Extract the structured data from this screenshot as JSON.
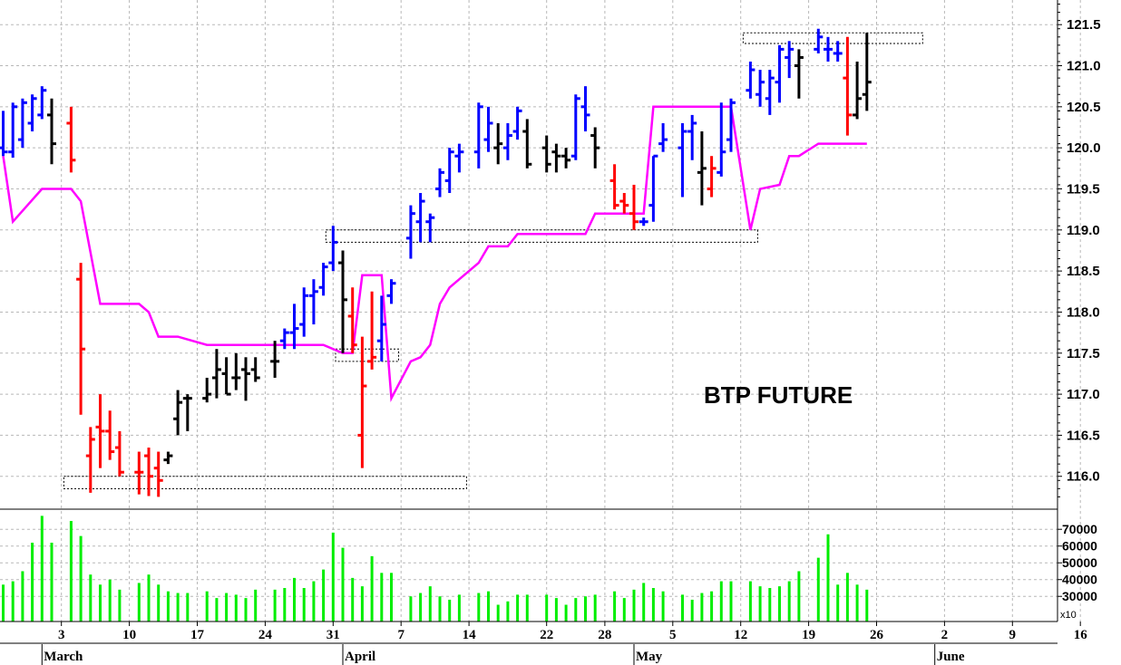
{
  "chart_data": {
    "type": "ohlc",
    "title": "BTP FUTURE",
    "colors": {
      "up": "#0000ff",
      "down": "#ff0000",
      "neutral": "#000000",
      "stop_line": "#ff00ff",
      "volume": "#00ee00",
      "grid": "#b8b8b8"
    },
    "price_axis": {
      "ylim": [
        115.6,
        121.8
      ],
      "ticks": [
        "116.0",
        "116.5",
        "117.0",
        "117.5",
        "118.0",
        "118.5",
        "119.0",
        "119.5",
        "120.0",
        "120.5",
        "121.0",
        "121.5"
      ],
      "position": "right"
    },
    "volume_axis": {
      "ylim": [
        15000,
        82000
      ],
      "ticks": [
        "30000",
        "40000",
        "50000",
        "60000",
        "70000"
      ],
      "multiplier_label": "x10",
      "position": "right"
    },
    "x_axis": {
      "day_ticks": [
        "3",
        "10",
        "17",
        "24",
        "31",
        "7",
        "14",
        "22",
        "28",
        "5",
        "12",
        "19",
        "26",
        "2",
        "9",
        "16"
      ],
      "months": [
        "March",
        "April",
        "May",
        "June"
      ]
    },
    "bars": [
      {
        "d": "02-25",
        "h": 120.45,
        "l": 119.9,
        "o": 120.0,
        "c": 119.95,
        "col": "blue"
      },
      {
        "d": "02-26",
        "h": 120.55,
        "l": 119.88,
        "o": 119.95,
        "c": 120.5,
        "col": "blue"
      },
      {
        "d": "02-27",
        "h": 120.6,
        "l": 120.0,
        "o": 120.1,
        "c": 120.55,
        "col": "blue"
      },
      {
        "d": "02-28",
        "h": 120.65,
        "l": 120.2,
        "o": 120.3,
        "c": 120.6,
        "col": "blue"
      },
      {
        "d": "03-01",
        "h": 120.75,
        "l": 120.35,
        "o": 120.4,
        "c": 120.7,
        "col": "blue"
      },
      {
        "d": "03-02",
        "h": 120.6,
        "l": 119.8,
        "o": 120.4,
        "c": 120.05,
        "col": "black"
      },
      {
        "d": "03-04",
        "h": 120.5,
        "l": 119.7,
        "o": 120.3,
        "c": 119.85,
        "col": "red"
      },
      {
        "d": "03-05",
        "h": 118.6,
        "l": 116.75,
        "o": 118.4,
        "c": 117.55,
        "col": "red"
      },
      {
        "d": "03-06",
        "h": 116.6,
        "l": 115.8,
        "o": 116.25,
        "c": 116.45,
        "col": "red"
      },
      {
        "d": "03-07",
        "h": 117.0,
        "l": 116.1,
        "o": 116.6,
        "c": 116.55,
        "col": "red"
      },
      {
        "d": "03-08",
        "h": 116.8,
        "l": 116.2,
        "o": 116.55,
        "c": 116.3,
        "col": "red"
      },
      {
        "d": "03-09",
        "h": 116.55,
        "l": 116.0,
        "o": 116.35,
        "c": 116.05,
        "col": "red"
      },
      {
        "d": "03-11",
        "h": 116.3,
        "l": 115.78,
        "o": 116.05,
        "c": 116.05,
        "col": "red"
      },
      {
        "d": "03-12",
        "h": 116.35,
        "l": 115.76,
        "o": 116.25,
        "c": 116.0,
        "col": "red"
      },
      {
        "d": "03-13",
        "h": 116.3,
        "l": 115.75,
        "o": 116.1,
        "c": 115.95,
        "col": "red"
      },
      {
        "d": "03-14",
        "h": 116.3,
        "l": 116.15,
        "o": 116.2,
        "c": 116.25,
        "col": "black"
      },
      {
        "d": "03-15",
        "h": 117.05,
        "l": 116.5,
        "o": 116.7,
        "c": 116.9,
        "col": "black"
      },
      {
        "d": "03-16",
        "h": 117.0,
        "l": 116.55,
        "o": 116.95,
        "c": 116.95,
        "col": "black"
      },
      {
        "d": "03-18",
        "h": 117.2,
        "l": 116.9,
        "o": 116.95,
        "c": 117.0,
        "col": "black"
      },
      {
        "d": "03-19",
        "h": 117.55,
        "l": 116.95,
        "o": 117.2,
        "c": 117.3,
        "col": "black"
      },
      {
        "d": "03-20",
        "h": 117.45,
        "l": 117.0,
        "o": 117.25,
        "c": 117.0,
        "col": "black"
      },
      {
        "d": "03-21",
        "h": 117.5,
        "l": 117.05,
        "o": 117.2,
        "c": 117.2,
        "col": "black"
      },
      {
        "d": "03-22",
        "h": 117.45,
        "l": 116.92,
        "o": 117.3,
        "c": 117.25,
        "col": "black"
      },
      {
        "d": "03-23",
        "h": 117.45,
        "l": 117.15,
        "o": 117.3,
        "c": 117.2,
        "col": "black"
      },
      {
        "d": "03-25",
        "h": 117.65,
        "l": 117.2,
        "o": 117.4,
        "c": 117.4,
        "col": "black"
      },
      {
        "d": "03-26",
        "h": 117.8,
        "l": 117.55,
        "o": 117.65,
        "c": 117.75,
        "col": "blue"
      },
      {
        "d": "03-27",
        "h": 118.1,
        "l": 117.55,
        "o": 117.75,
        "c": 117.8,
        "col": "blue"
      },
      {
        "d": "03-28",
        "h": 118.3,
        "l": 117.7,
        "o": 117.85,
        "c": 118.2,
        "col": "blue"
      },
      {
        "d": "03-29",
        "h": 118.4,
        "l": 117.85,
        "o": 118.2,
        "c": 118.25,
        "col": "blue"
      },
      {
        "d": "03-30",
        "h": 118.6,
        "l": 118.2,
        "o": 118.3,
        "c": 118.55,
        "col": "blue"
      },
      {
        "d": "03-31",
        "h": 119.05,
        "l": 118.5,
        "o": 118.6,
        "c": 118.85,
        "col": "blue"
      },
      {
        "d": "04-01",
        "h": 118.75,
        "l": 117.5,
        "o": 118.6,
        "c": 118.15,
        "col": "black"
      },
      {
        "d": "04-02",
        "h": 118.3,
        "l": 117.5,
        "o": 117.95,
        "c": 117.6,
        "col": "red"
      },
      {
        "d": "04-03",
        "h": 117.7,
        "l": 116.1,
        "o": 116.5,
        "c": 117.1,
        "col": "red"
      },
      {
        "d": "04-04",
        "h": 118.25,
        "l": 117.3,
        "o": 117.4,
        "c": 117.45,
        "col": "red"
      },
      {
        "d": "04-05",
        "h": 118.2,
        "l": 117.4,
        "o": 117.65,
        "c": 117.85,
        "col": "blue"
      },
      {
        "d": "04-06",
        "h": 118.4,
        "l": 118.1,
        "o": 118.2,
        "c": 118.35,
        "col": "blue"
      },
      {
        "d": "04-08",
        "h": 119.3,
        "l": 118.65,
        "o": 118.9,
        "c": 119.2,
        "col": "blue"
      },
      {
        "d": "04-09",
        "h": 119.45,
        "l": 118.85,
        "o": 119.1,
        "c": 119.35,
        "col": "blue"
      },
      {
        "d": "04-10",
        "h": 119.2,
        "l": 118.85,
        "o": 119.1,
        "c": 119.15,
        "col": "blue"
      },
      {
        "d": "04-11",
        "h": 119.75,
        "l": 119.4,
        "o": 119.5,
        "c": 119.7,
        "col": "blue"
      },
      {
        "d": "04-12",
        "h": 120.0,
        "l": 119.45,
        "o": 119.6,
        "c": 119.95,
        "col": "blue"
      },
      {
        "d": "04-13",
        "h": 120.05,
        "l": 119.7,
        "o": 119.9,
        "c": 119.95,
        "col": "blue"
      },
      {
        "d": "04-15",
        "h": 120.55,
        "l": 119.75,
        "o": 119.95,
        "c": 120.5,
        "col": "blue"
      },
      {
        "d": "04-16",
        "h": 120.5,
        "l": 119.95,
        "o": 120.1,
        "c": 120.3,
        "col": "blue"
      },
      {
        "d": "04-17",
        "h": 120.3,
        "l": 119.8,
        "o": 120.0,
        "c": 120.05,
        "col": "black"
      },
      {
        "d": "04-18",
        "h": 120.3,
        "l": 119.85,
        "o": 120.0,
        "c": 120.15,
        "col": "blue"
      },
      {
        "d": "04-19",
        "h": 120.5,
        "l": 120.1,
        "o": 120.2,
        "c": 120.45,
        "col": "blue"
      },
      {
        "d": "04-20",
        "h": 120.35,
        "l": 119.75,
        "o": 120.2,
        "c": 119.8,
        "col": "black"
      },
      {
        "d": "04-22",
        "h": 120.15,
        "l": 119.7,
        "o": 120.0,
        "c": 119.8,
        "col": "black"
      },
      {
        "d": "04-23",
        "h": 120.05,
        "l": 119.7,
        "o": 119.95,
        "c": 119.9,
        "col": "black"
      },
      {
        "d": "04-24",
        "h": 120.0,
        "l": 119.75,
        "o": 119.9,
        "c": 119.85,
        "col": "black"
      },
      {
        "d": "04-25",
        "h": 120.65,
        "l": 119.85,
        "o": 119.9,
        "c": 120.6,
        "col": "blue"
      },
      {
        "d": "04-26",
        "h": 120.75,
        "l": 120.2,
        "o": 120.5,
        "c": 120.4,
        "col": "blue"
      },
      {
        "d": "04-27",
        "h": 120.25,
        "l": 119.75,
        "o": 120.15,
        "c": 120.0,
        "col": "black"
      },
      {
        "d": "04-29",
        "h": 119.8,
        "l": 119.25,
        "o": 119.6,
        "c": 119.3,
        "col": "red"
      },
      {
        "d": "04-30",
        "h": 119.45,
        "l": 119.2,
        "o": 119.35,
        "c": 119.3,
        "col": "red"
      },
      {
        "d": "05-01",
        "h": 119.55,
        "l": 119.0,
        "o": 119.2,
        "c": 119.1,
        "col": "red"
      },
      {
        "d": "05-02",
        "h": 119.15,
        "l": 119.05,
        "o": 119.1,
        "c": 119.1,
        "col": "blue"
      },
      {
        "d": "05-03",
        "h": 119.9,
        "l": 119.1,
        "o": 119.3,
        "c": 119.9,
        "col": "blue"
      },
      {
        "d": "05-04",
        "h": 120.3,
        "l": 119.95,
        "o": 120.05,
        "c": 120.1,
        "col": "blue"
      },
      {
        "d": "05-06",
        "h": 120.3,
        "l": 119.4,
        "o": 120.0,
        "c": 120.2,
        "col": "blue"
      },
      {
        "d": "05-07",
        "h": 120.4,
        "l": 119.85,
        "o": 120.2,
        "c": 120.3,
        "col": "blue"
      },
      {
        "d": "05-08",
        "h": 120.2,
        "l": 119.3,
        "o": 119.7,
        "c": 119.75,
        "col": "black"
      },
      {
        "d": "05-09",
        "h": 119.9,
        "l": 119.4,
        "o": 119.5,
        "c": 119.75,
        "col": "red"
      },
      {
        "d": "05-10",
        "h": 120.55,
        "l": 119.65,
        "o": 119.7,
        "c": 119.95,
        "col": "blue"
      },
      {
        "d": "05-11",
        "h": 120.6,
        "l": 119.95,
        "o": 120.1,
        "c": 120.55,
        "col": "blue"
      },
      {
        "d": "05-13",
        "h": 121.05,
        "l": 120.6,
        "o": 120.7,
        "c": 120.95,
        "col": "blue"
      },
      {
        "d": "05-14",
        "h": 120.95,
        "l": 120.5,
        "o": 120.65,
        "c": 120.8,
        "col": "blue"
      },
      {
        "d": "05-15",
        "h": 120.95,
        "l": 120.4,
        "o": 120.6,
        "c": 120.85,
        "col": "blue"
      },
      {
        "d": "05-16",
        "h": 121.25,
        "l": 120.55,
        "o": 120.8,
        "c": 121.2,
        "col": "blue"
      },
      {
        "d": "05-17",
        "h": 121.3,
        "l": 120.85,
        "o": 121.1,
        "c": 121.2,
        "col": "blue"
      },
      {
        "d": "05-18",
        "h": 121.2,
        "l": 120.6,
        "o": 121.0,
        "c": 121.1,
        "col": "black"
      },
      {
        "d": "05-20",
        "h": 121.45,
        "l": 121.15,
        "o": 121.2,
        "c": 121.35,
        "col": "blue"
      },
      {
        "d": "05-21",
        "h": 121.35,
        "l": 121.05,
        "o": 121.2,
        "c": 121.2,
        "col": "blue"
      },
      {
        "d": "05-22",
        "h": 121.3,
        "l": 121.05,
        "o": 121.15,
        "c": 121.15,
        "col": "blue"
      },
      {
        "d": "05-23",
        "h": 121.35,
        "l": 120.15,
        "o": 120.85,
        "c": 120.4,
        "col": "red"
      },
      {
        "d": "05-24",
        "h": 121.05,
        "l": 120.35,
        "o": 120.4,
        "c": 120.6,
        "col": "black"
      },
      {
        "d": "05-25",
        "h": 121.4,
        "l": 120.45,
        "o": 120.65,
        "c": 120.8,
        "col": "black"
      }
    ],
    "stop_line": [
      {
        "d": "02-25",
        "v": 119.9
      },
      {
        "d": "02-26",
        "v": 119.1
      },
      {
        "d": "03-01",
        "v": 119.5
      },
      {
        "d": "03-04",
        "v": 119.5
      },
      {
        "d": "03-05",
        "v": 119.35
      },
      {
        "d": "03-07",
        "v": 118.1
      },
      {
        "d": "03-11",
        "v": 118.1
      },
      {
        "d": "03-12",
        "v": 118.0
      },
      {
        "d": "03-13",
        "v": 117.7
      },
      {
        "d": "03-15",
        "v": 117.7
      },
      {
        "d": "03-18",
        "v": 117.6
      },
      {
        "d": "03-30",
        "v": 117.6
      },
      {
        "d": "04-01",
        "v": 117.5
      },
      {
        "d": "04-02",
        "v": 117.5
      },
      {
        "d": "04-03",
        "v": 118.45
      },
      {
        "d": "04-05",
        "v": 118.45
      },
      {
        "d": "04-06",
        "v": 116.95
      },
      {
        "d": "04-08",
        "v": 117.4
      },
      {
        "d": "04-09",
        "v": 117.45
      },
      {
        "d": "04-10",
        "v": 117.6
      },
      {
        "d": "04-11",
        "v": 118.1
      },
      {
        "d": "04-12",
        "v": 118.3
      },
      {
        "d": "04-15",
        "v": 118.6
      },
      {
        "d": "04-16",
        "v": 118.8
      },
      {
        "d": "04-18",
        "v": 118.8
      },
      {
        "d": "04-19",
        "v": 118.95
      },
      {
        "d": "04-26",
        "v": 118.95
      },
      {
        "d": "04-27",
        "v": 119.2
      },
      {
        "d": "05-02",
        "v": 119.2
      },
      {
        "d": "05-03",
        "v": 120.5
      },
      {
        "d": "05-10",
        "v": 120.5
      },
      {
        "d": "05-11",
        "v": 120.5
      },
      {
        "d": "05-13",
        "v": 119.0
      },
      {
        "d": "05-14",
        "v": 119.5
      },
      {
        "d": "05-16",
        "v": 119.55
      },
      {
        "d": "05-17",
        "v": 119.9
      },
      {
        "d": "05-18",
        "v": 119.9
      },
      {
        "d": "05-20",
        "v": 120.05
      },
      {
        "d": "05-25",
        "v": 120.05
      }
    ],
    "boxes": [
      {
        "from": "03-04",
        "to": "04-13",
        "high": 116.0,
        "low": 115.85
      },
      {
        "from": "03-31",
        "to": "05-13",
        "high": 119.0,
        "low": 118.85
      },
      {
        "from": "04-01",
        "to": "04-06",
        "high": 117.55,
        "low": 117.4
      },
      {
        "from": "05-13",
        "to": "05-30",
        "high": 121.4,
        "low": 121.27
      }
    ],
    "volume": [
      {
        "d": "02-25",
        "v": 37000
      },
      {
        "d": "02-26",
        "v": 39000
      },
      {
        "d": "02-27",
        "v": 45000
      },
      {
        "d": "02-28",
        "v": 62000
      },
      {
        "d": "03-01",
        "v": 78000
      },
      {
        "d": "03-02",
        "v": 62000
      },
      {
        "d": "03-04",
        "v": 75000
      },
      {
        "d": "03-05",
        "v": 66000
      },
      {
        "d": "03-06",
        "v": 43000
      },
      {
        "d": "03-07",
        "v": 37000
      },
      {
        "d": "03-08",
        "v": 40000
      },
      {
        "d": "03-09",
        "v": 34000
      },
      {
        "d": "03-11",
        "v": 38000
      },
      {
        "d": "03-12",
        "v": 43000
      },
      {
        "d": "03-13",
        "v": 37000
      },
      {
        "d": "03-14",
        "v": 33000
      },
      {
        "d": "03-15",
        "v": 32000
      },
      {
        "d": "03-16",
        "v": 32000
      },
      {
        "d": "03-18",
        "v": 33000
      },
      {
        "d": "03-19",
        "v": 29000
      },
      {
        "d": "03-20",
        "v": 32000
      },
      {
        "d": "03-21",
        "v": 31000
      },
      {
        "d": "03-22",
        "v": 29000
      },
      {
        "d": "03-23",
        "v": 34000
      },
      {
        "d": "03-25",
        "v": 34000
      },
      {
        "d": "03-26",
        "v": 35000
      },
      {
        "d": "03-27",
        "v": 41000
      },
      {
        "d": "03-28",
        "v": 35000
      },
      {
        "d": "03-29",
        "v": 39000
      },
      {
        "d": "03-30",
        "v": 46000
      },
      {
        "d": "03-31",
        "v": 68000
      },
      {
        "d": "04-01",
        "v": 59000
      },
      {
        "d": "04-02",
        "v": 41000
      },
      {
        "d": "04-03",
        "v": 36000
      },
      {
        "d": "04-04",
        "v": 54000
      },
      {
        "d": "04-05",
        "v": 44000
      },
      {
        "d": "04-06",
        "v": 44000
      },
      {
        "d": "04-08",
        "v": 30000
      },
      {
        "d": "04-09",
        "v": 32000
      },
      {
        "d": "04-10",
        "v": 36000
      },
      {
        "d": "04-11",
        "v": 30000
      },
      {
        "d": "04-12",
        "v": 28000
      },
      {
        "d": "04-13",
        "v": 31000
      },
      {
        "d": "04-15",
        "v": 32000
      },
      {
        "d": "04-16",
        "v": 33000
      },
      {
        "d": "04-17",
        "v": 25000
      },
      {
        "d": "04-18",
        "v": 27000
      },
      {
        "d": "04-19",
        "v": 31000
      },
      {
        "d": "04-20",
        "v": 31000
      },
      {
        "d": "04-22",
        "v": 31000
      },
      {
        "d": "04-23",
        "v": 29000
      },
      {
        "d": "04-24",
        "v": 25000
      },
      {
        "d": "04-25",
        "v": 29000
      },
      {
        "d": "04-26",
        "v": 30000
      },
      {
        "d": "04-27",
        "v": 31000
      },
      {
        "d": "04-29",
        "v": 33000
      },
      {
        "d": "04-30",
        "v": 29000
      },
      {
        "d": "05-01",
        "v": 34000
      },
      {
        "d": "05-02",
        "v": 38000
      },
      {
        "d": "05-03",
        "v": 35000
      },
      {
        "d": "05-04",
        "v": 33000
      },
      {
        "d": "05-06",
        "v": 31000
      },
      {
        "d": "05-07",
        "v": 28000
      },
      {
        "d": "05-08",
        "v": 32000
      },
      {
        "d": "05-09",
        "v": 33000
      },
      {
        "d": "05-10",
        "v": 39000
      },
      {
        "d": "05-11",
        "v": 39000
      },
      {
        "d": "05-13",
        "v": 39000
      },
      {
        "d": "05-14",
        "v": 36000
      },
      {
        "d": "05-15",
        "v": 35000
      },
      {
        "d": "05-16",
        "v": 36000
      },
      {
        "d": "05-17",
        "v": 39000
      },
      {
        "d": "05-18",
        "v": 45000
      },
      {
        "d": "05-20",
        "v": 53000
      },
      {
        "d": "05-21",
        "v": 67000
      },
      {
        "d": "05-22",
        "v": 37000
      },
      {
        "d": "05-23",
        "v": 44000
      },
      {
        "d": "05-24",
        "v": 37000
      },
      {
        "d": "05-25",
        "v": 34000
      }
    ]
  }
}
